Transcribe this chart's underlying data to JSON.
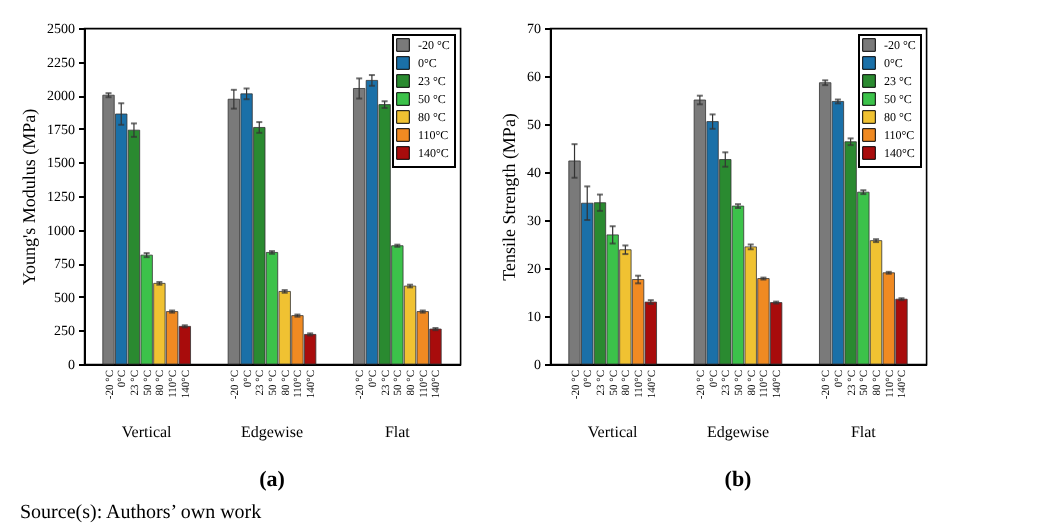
{
  "chart_data": [
    {
      "type": "bar",
      "title": "(a)",
      "ylabel": "Young's Modulus (MPa)",
      "categories": [
        "Vertical",
        "Edgewise",
        "Flat"
      ],
      "ylim": [
        0,
        2500
      ],
      "yticks": [
        0,
        250,
        500,
        750,
        1000,
        1250,
        1500,
        1750,
        2000,
        2250,
        2500
      ],
      "grid": false,
      "legend": "top right",
      "annotations": [
        "Source(s): Authors’ own work"
      ],
      "series": [
        {
          "name": "-20 °C",
          "color": "#7a7a7a",
          "values": [
            2000,
            1970,
            2050
          ],
          "errors": [
            15,
            70,
            75
          ]
        },
        {
          "name": "0°C",
          "color": "#1a70a8",
          "values": [
            1860,
            2010,
            2110
          ],
          "errors": [
            80,
            40,
            40
          ]
        },
        {
          "name": "23 °C",
          "color": "#2a8a30",
          "values": [
            1740,
            1760,
            1930
          ],
          "errors": [
            50,
            40,
            25
          ]
        },
        {
          "name": "50 °C",
          "color": "#3cc24a",
          "values": [
            810,
            830,
            880
          ],
          "errors": [
            15,
            10,
            8
          ]
        },
        {
          "name": "80 °C",
          "color": "#f0c232",
          "values": [
            600,
            540,
            580
          ],
          "errors": [
            10,
            10,
            10
          ]
        },
        {
          "name": "110°C",
          "color": "#f08a22",
          "values": [
            390,
            360,
            390
          ],
          "errors": [
            8,
            8,
            8
          ]
        },
        {
          "name": "140°C",
          "color": "#a80c0c",
          "values": [
            280,
            220,
            260
          ],
          "errors": [
            8,
            8,
            8
          ]
        }
      ]
    },
    {
      "type": "bar",
      "title": "(b)",
      "ylabel": "Tensile Strength (MPa)",
      "categories": [
        "Vertical",
        "Edgewise",
        "Flat"
      ],
      "ylim": [
        0,
        70
      ],
      "yticks": [
        0,
        10,
        20,
        30,
        40,
        50,
        60,
        70
      ],
      "grid": false,
      "legend": "top right",
      "series": [
        {
          "name": "-20 °C",
          "color": "#7a7a7a",
          "values": [
            42.3,
            55.0,
            58.6
          ],
          "errors": [
            3.5,
            0.9,
            0.5
          ]
        },
        {
          "name": "0°C",
          "color": "#1a70a8",
          "values": [
            33.5,
            50.5,
            54.7
          ],
          "errors": [
            3.5,
            1.5,
            0.4
          ]
        },
        {
          "name": "23 °C",
          "color": "#2a8a30",
          "values": [
            33.6,
            42.6,
            46.3
          ],
          "errors": [
            1.7,
            1.5,
            0.7
          ]
        },
        {
          "name": "50 °C",
          "color": "#3cc24a",
          "values": [
            26.9,
            32.9,
            35.8
          ],
          "errors": [
            1.8,
            0.4,
            0.4
          ]
        },
        {
          "name": "80 °C",
          "color": "#f0c232",
          "values": [
            23.8,
            24.4,
            25.7
          ],
          "errors": [
            0.9,
            0.5,
            0.3
          ]
        },
        {
          "name": "110°C",
          "color": "#f08a22",
          "values": [
            17.6,
            17.8,
            19.0
          ],
          "errors": [
            0.8,
            0.2,
            0.2
          ]
        },
        {
          "name": "140°C",
          "color": "#a80c0c",
          "values": [
            12.9,
            12.8,
            13.5
          ],
          "errors": [
            0.4,
            0.2,
            0.2
          ]
        }
      ]
    }
  ]
}
